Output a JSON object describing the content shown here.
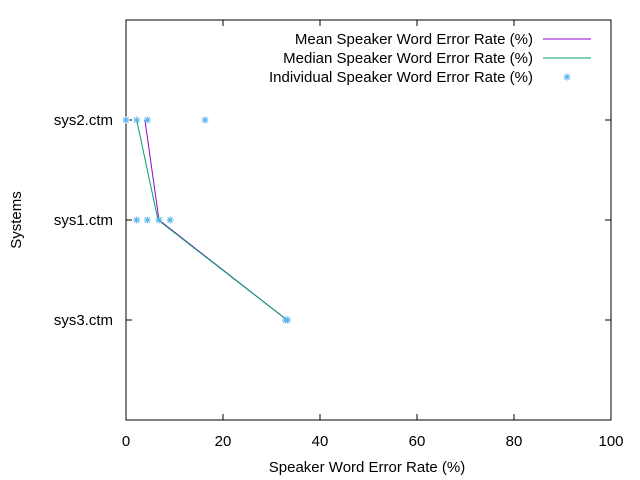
{
  "chart_data": {
    "type": "line",
    "title": "",
    "xlabel": "Speaker Word Error Rate (%)",
    "ylabel": "Systems",
    "xlim": [
      0,
      100
    ],
    "categories": [
      "sys3.ctm",
      "sys1.ctm",
      "sys2.ctm"
    ],
    "x_ticks": [
      0,
      20,
      40,
      60,
      80,
      100
    ],
    "grid": false,
    "legend_position": "top-right",
    "series": [
      {
        "name": "Mean Speaker Word Error Rate (%)",
        "kind": "line",
        "color": "#9400d3",
        "points": [
          {
            "category": "sys3.ctm",
            "x": 33.2
          },
          {
            "category": "sys1.ctm",
            "x": 6.8
          },
          {
            "category": "sys2.ctm",
            "x": 3.9
          }
        ]
      },
      {
        "name": "Median Speaker Word Error Rate (%)",
        "kind": "line",
        "color": "#009e73",
        "points": [
          {
            "category": "sys3.ctm",
            "x": 33.2
          },
          {
            "category": "sys1.ctm",
            "x": 6.6
          },
          {
            "category": "sys2.ctm",
            "x": 2.2
          }
        ]
      },
      {
        "name": "Individual Speaker Word Error Rate (%)",
        "kind": "points",
        "color": "#56b4e9",
        "points": [
          {
            "category": "sys2.ctm",
            "x": 0.0
          },
          {
            "category": "sys2.ctm",
            "x": 2.2
          },
          {
            "category": "sys2.ctm",
            "x": 4.4
          },
          {
            "category": "sys2.ctm",
            "x": 16.3
          },
          {
            "category": "sys1.ctm",
            "x": 2.2
          },
          {
            "category": "sys1.ctm",
            "x": 4.4
          },
          {
            "category": "sys1.ctm",
            "x": 6.8
          },
          {
            "category": "sys1.ctm",
            "x": 9.1
          },
          {
            "category": "sys3.ctm",
            "x": 32.9
          },
          {
            "category": "sys3.ctm",
            "x": 33.3
          }
        ]
      }
    ]
  }
}
